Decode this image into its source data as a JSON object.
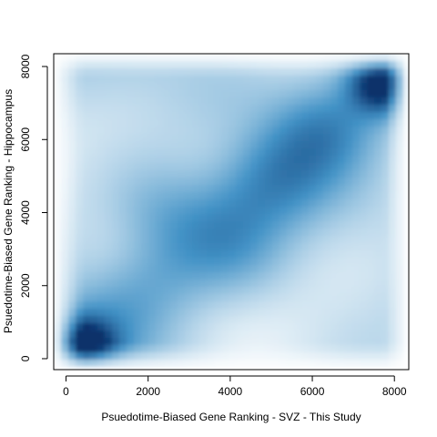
{
  "chart_data": {
    "type": "heatmap",
    "subtype": "smoothed-density-scatter",
    "title": "",
    "xlabel": "Psuedotime-Biased Gene Ranking - SVZ - This Study",
    "ylabel": "Psuedotime-Biased Gene Ranking - Hippocampus",
    "xlim": [
      -300,
      8350
    ],
    "ylim": [
      -300,
      8350
    ],
    "x_ticks": [
      0,
      2000,
      4000,
      6000,
      8000
    ],
    "y_ticks": [
      0,
      2000,
      4000,
      6000,
      8000
    ],
    "x_tick_labels": [
      "0",
      "2000",
      "4000",
      "6000",
      "8000"
    ],
    "y_tick_labels": [
      "0",
      "2000",
      "4000",
      "6000",
      "8000"
    ],
    "colormap": [
      "#ffffff",
      "#08306b"
    ],
    "grid": false,
    "legend": "none",
    "density_peaks": [
      {
        "x": 400,
        "y": 300,
        "weight": 1.0
      },
      {
        "x": 7700,
        "y": 7500,
        "weight": 0.9
      },
      {
        "x": 2300,
        "y": 4100,
        "weight": 0.55
      },
      {
        "x": 5300,
        "y": 4800,
        "weight": 0.5
      },
      {
        "x": 4200,
        "y": 3000,
        "weight": 0.5
      },
      {
        "x": 6300,
        "y": 6200,
        "weight": 0.55
      }
    ]
  }
}
